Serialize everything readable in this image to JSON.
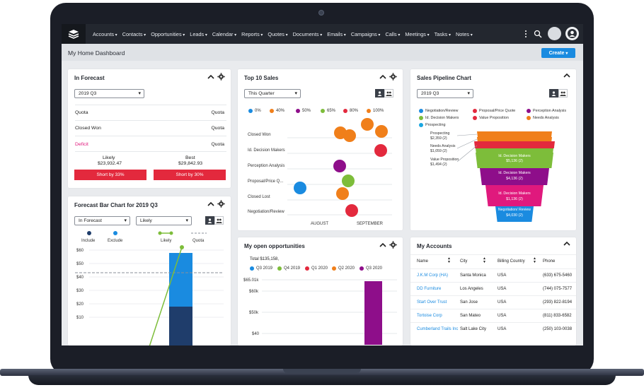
{
  "nav": {
    "items": [
      "Accounts",
      "Contacts",
      "Opportunities",
      "Leads",
      "Calendar",
      "Reports",
      "Quotes",
      "Documents",
      "Emails",
      "Campaigns",
      "Calls",
      "Meetings",
      "Tasks",
      "Notes"
    ]
  },
  "header": {
    "title": "My Home Dashboard",
    "create_label": "Create"
  },
  "forecast": {
    "title": "In Forecast",
    "period": "2019 Q3",
    "rows": [
      {
        "label": "Quota",
        "value": "Quota"
      },
      {
        "label": "Closed Won",
        "value": "Quota"
      },
      {
        "label": "Deficit",
        "value": "Quota"
      }
    ],
    "likely_label": "Likely",
    "likely_value": "$23,932.47",
    "best_label": "Best",
    "best_value": "$29,842.93",
    "short_likely": "Short by 33%",
    "short_best": "Short by 30%"
  },
  "top10": {
    "title": "Top 10 Sales",
    "period": "This Quarter",
    "legend": [
      {
        "label": "0%",
        "color": "#1a8be0"
      },
      {
        "label": "40%",
        "color": "#f07f1a"
      },
      {
        "label": "50%",
        "color": "#8e0e8a"
      },
      {
        "label": "65%",
        "color": "#7dbd3a"
      },
      {
        "label": "80%",
        "color": "#e3293d"
      },
      {
        "label": "100%",
        "color": "#f07f1a"
      }
    ],
    "categories": [
      "Closed Won",
      "Id. Decision Makers",
      "Perception Analysis",
      "Proposal/Price Q...",
      "Closed Lost",
      "Negotiation/Review"
    ],
    "x_labels": [
      "AUGUST",
      "SEPTEMBER"
    ]
  },
  "pipeline": {
    "title": "Sales Pipeline Chart",
    "period": "2019 Q3",
    "legend": [
      {
        "label": "Negotiation/Review",
        "color": "#1a8be0"
      },
      {
        "label": "Proposal/Price Quote",
        "color": "#e3293d"
      },
      {
        "label": "Perception Analysis",
        "color": "#8e0e8a"
      },
      {
        "label": "Id. Decision Makers",
        "color": "#7dbd3a"
      },
      {
        "label": "Value Proposition",
        "color": "#e3293d"
      },
      {
        "label": "Needs Analysis",
        "color": "#f07f1a"
      },
      {
        "label": "Prospecting",
        "color": "#1aa6e0"
      }
    ],
    "side_labels": [
      {
        "name": "Prospecting",
        "value": "$2,359 (2)"
      },
      {
        "name": "Needs Analysis",
        "value": "$1,059 (2)"
      },
      {
        "name": "Value Proposition",
        "value": "$1,494 (2)"
      }
    ],
    "stages": [
      {
        "name": "Id. Decision Makers",
        "value": "$5,136 (2)",
        "color": "#7dbd3a"
      },
      {
        "name": "Id. Decision Makers",
        "value": "$4,136 (2)",
        "color": "#8e0e8a"
      },
      {
        "name": "Id. Decision Makers",
        "value": "$1,136 (2)",
        "color": "#e0197d"
      },
      {
        "name": "Negotiation/ Review",
        "value": "$4,030 (2)",
        "color": "#1a8be0"
      }
    ]
  },
  "forecast_bar": {
    "title": "Forecast Bar Chart for 2019 Q3",
    "select_a": "In Forecast",
    "select_b": "Likely",
    "legend": [
      {
        "label": "Include",
        "color": "#1f3d6b"
      },
      {
        "label": "Exclude",
        "color": "#1a8be0"
      },
      {
        "label": "Likely",
        "color": "#7dbd3a"
      },
      {
        "label": "Quota",
        "color": "#8a8f98"
      }
    ],
    "y_ticks": [
      "$60",
      "$50",
      "$40",
      "$30",
      "$20",
      "$10"
    ]
  },
  "opportunities": {
    "title": "My open opportunities",
    "total": "Total $135,158,",
    "legend": [
      {
        "label": "Q3 2019",
        "color": "#1a8be0"
      },
      {
        "label": "Q4 2019",
        "color": "#7dbd3a"
      },
      {
        "label": "Q1 2020",
        "color": "#e3293d"
      },
      {
        "label": "Q2 2020",
        "color": "#f07f1a"
      },
      {
        "label": "Q3 2020",
        "color": "#8e0e8a"
      }
    ],
    "y_ticks": [
      "$65.01k",
      "$60k",
      "$50k",
      "$40"
    ]
  },
  "accounts": {
    "title": "My Accounts",
    "columns": [
      "Name",
      "City",
      "Billing Country",
      "Phone"
    ],
    "rows": [
      {
        "name": "J.K.M Corp (HA)",
        "city": "Santa Monica",
        "country": "USA",
        "phone": "(633) 675-5460"
      },
      {
        "name": "DD Furniture",
        "city": "Los Angeles",
        "country": "USA",
        "phone": "(744) 075-7577"
      },
      {
        "name": "Start Over Trust",
        "city": "San Jose",
        "country": "USA",
        "phone": "(293) 822-8194"
      },
      {
        "name": "Tortoise Corp",
        "city": "San Mateo",
        "country": "USA",
        "phone": "(811) 833-6582"
      },
      {
        "name": "Cumberland Trails Inc",
        "city": "Salt Lake City",
        "country": "USA",
        "phone": "(250) 103-0038"
      }
    ]
  }
}
